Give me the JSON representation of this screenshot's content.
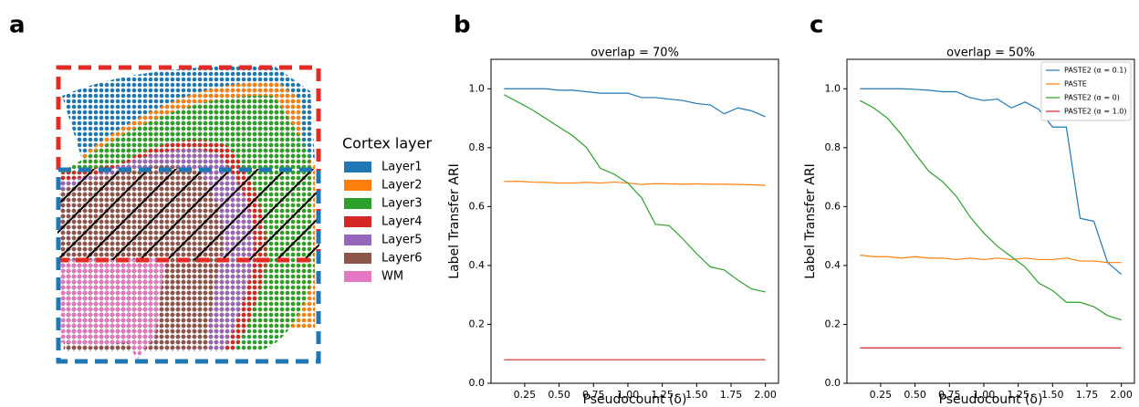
{
  "panel_a": {
    "label": "a",
    "legend_title": "Cortex layer",
    "layers": [
      {
        "name": "Layer1",
        "color": "#1f77b4"
      },
      {
        "name": "Layer2",
        "color": "#ff7f0e"
      },
      {
        "name": "Layer3",
        "color": "#2ca02c"
      },
      {
        "name": "Layer4",
        "color": "#d62728"
      },
      {
        "name": "Layer5",
        "color": "#9467bd"
      },
      {
        "name": "Layer6",
        "color": "#8c564b"
      },
      {
        "name": "WM",
        "color": "#e377c2"
      }
    ]
  },
  "chart_data": [
    {
      "type": "line",
      "panel_label": "b",
      "title": "overlap = 70%",
      "x_label": "Pseudocount (δ)",
      "y_label": "Label Transfer ARI",
      "x": [
        0.1,
        0.2,
        0.3,
        0.4,
        0.5,
        0.6,
        0.7,
        0.8,
        0.9,
        1.0,
        1.1,
        1.2,
        1.3,
        1.4,
        1.5,
        1.6,
        1.7,
        1.8,
        1.9,
        2.0
      ],
      "series": [
        {
          "color": "#1f77b4",
          "values": [
            1.0,
            1.0,
            1.0,
            1.0,
            0.995,
            0.995,
            0.99,
            0.985,
            0.985,
            0.985,
            0.97,
            0.97,
            0.965,
            0.96,
            0.95,
            0.945,
            0.915,
            0.935,
            0.925,
            0.905
          ]
        },
        {
          "color": "#ff7f0e",
          "values": [
            0.685,
            0.686,
            0.683,
            0.682,
            0.68,
            0.68,
            0.682,
            0.68,
            0.683,
            0.68,
            0.675,
            0.678,
            0.677,
            0.676,
            0.677,
            0.676,
            0.676,
            0.675,
            0.674,
            0.672
          ]
        },
        {
          "color": "#2ca02c",
          "values": [
            0.98,
            0.955,
            0.93,
            0.9,
            0.87,
            0.84,
            0.8,
            0.73,
            0.71,
            0.68,
            0.63,
            0.54,
            0.535,
            0.49,
            0.44,
            0.395,
            0.385,
            0.35,
            0.32,
            0.31
          ]
        },
        {
          "color": "#d62728",
          "values": [
            0.08,
            0.08,
            0.08,
            0.08,
            0.08,
            0.08,
            0.08,
            0.08,
            0.08,
            0.08,
            0.08,
            0.08,
            0.08,
            0.08,
            0.08,
            0.08,
            0.08,
            0.08,
            0.08,
            0.08
          ]
        }
      ],
      "xlim": [
        0.005,
        2.095
      ],
      "ylim": [
        0,
        1.1
      ],
      "xticks": [
        0.25,
        {
          "value": 0.5,
          "label": "0.50"
        },
        0.75,
        {
          "value": 1,
          "label": "1.00"
        },
        1.25,
        {
          "value": 1.5,
          "label": "1.50"
        },
        1.75,
        {
          "value": 2,
          "label": "2.00"
        }
      ],
      "yticks": [
        {
          "value": 0,
          "label": "0.0"
        },
        0.2,
        0.4,
        0.6,
        0.8,
        {
          "value": 1,
          "label": "1.0"
        }
      ],
      "legend": false
    },
    {
      "type": "line",
      "panel_label": "c",
      "title": "overlap = 50%",
      "x_label": "Pseudocount (δ)",
      "y_label": "Label Transfer ARI",
      "x": [
        0.1,
        0.2,
        0.3,
        0.4,
        0.5,
        0.6,
        0.7,
        0.8,
        0.9,
        1.0,
        1.1,
        1.2,
        1.3,
        1.4,
        1.5,
        1.6,
        1.7,
        1.8,
        1.9,
        2.0
      ],
      "series": [
        {
          "name": "PASTE2 (α = 0.1)",
          "color": "#1f77b4",
          "values": [
            1.0,
            1.0,
            1.0,
            1.0,
            0.998,
            0.995,
            0.99,
            0.99,
            0.97,
            0.96,
            0.965,
            0.935,
            0.955,
            0.93,
            0.87,
            0.87,
            0.56,
            0.55,
            0.41,
            0.37
          ]
        },
        {
          "name": "PASTE",
          "color": "#ff7f0e",
          "values": [
            0.435,
            0.43,
            0.43,
            0.425,
            0.43,
            0.425,
            0.425,
            0.42,
            0.425,
            0.42,
            0.425,
            0.42,
            0.425,
            0.42,
            0.42,
            0.425,
            0.415,
            0.415,
            0.41,
            0.41
          ]
        },
        {
          "name": "PASTE2 (α = 0)",
          "color": "#2ca02c",
          "values": [
            0.96,
            0.935,
            0.9,
            0.845,
            0.78,
            0.72,
            0.685,
            0.635,
            0.565,
            0.51,
            0.465,
            0.43,
            0.395,
            0.34,
            0.315,
            0.275,
            0.275,
            0.26,
            0.23,
            0.215
          ]
        },
        {
          "name": "PASTE2 (α = 1.0)",
          "color": "#d62728",
          "values": [
            0.12,
            0.12,
            0.12,
            0.12,
            0.12,
            0.12,
            0.12,
            0.12,
            0.12,
            0.12,
            0.12,
            0.12,
            0.12,
            0.12,
            0.12,
            0.12,
            0.12,
            0.12,
            0.12,
            0.12
          ]
        }
      ],
      "xlim": [
        0.005,
        2.095
      ],
      "ylim": [
        0,
        1.1
      ],
      "xticks": [
        0.25,
        {
          "value": 0.5,
          "label": "0.50"
        },
        0.75,
        {
          "value": 1,
          "label": "1.00"
        },
        1.25,
        {
          "value": 1.5,
          "label": "1.50"
        },
        1.75,
        {
          "value": 2,
          "label": "2.00"
        }
      ],
      "yticks": [
        {
          "value": 0,
          "label": "0.0"
        },
        0.2,
        0.4,
        0.6,
        0.8,
        {
          "value": 1,
          "label": "1.0"
        }
      ],
      "legend": "upper right"
    }
  ]
}
